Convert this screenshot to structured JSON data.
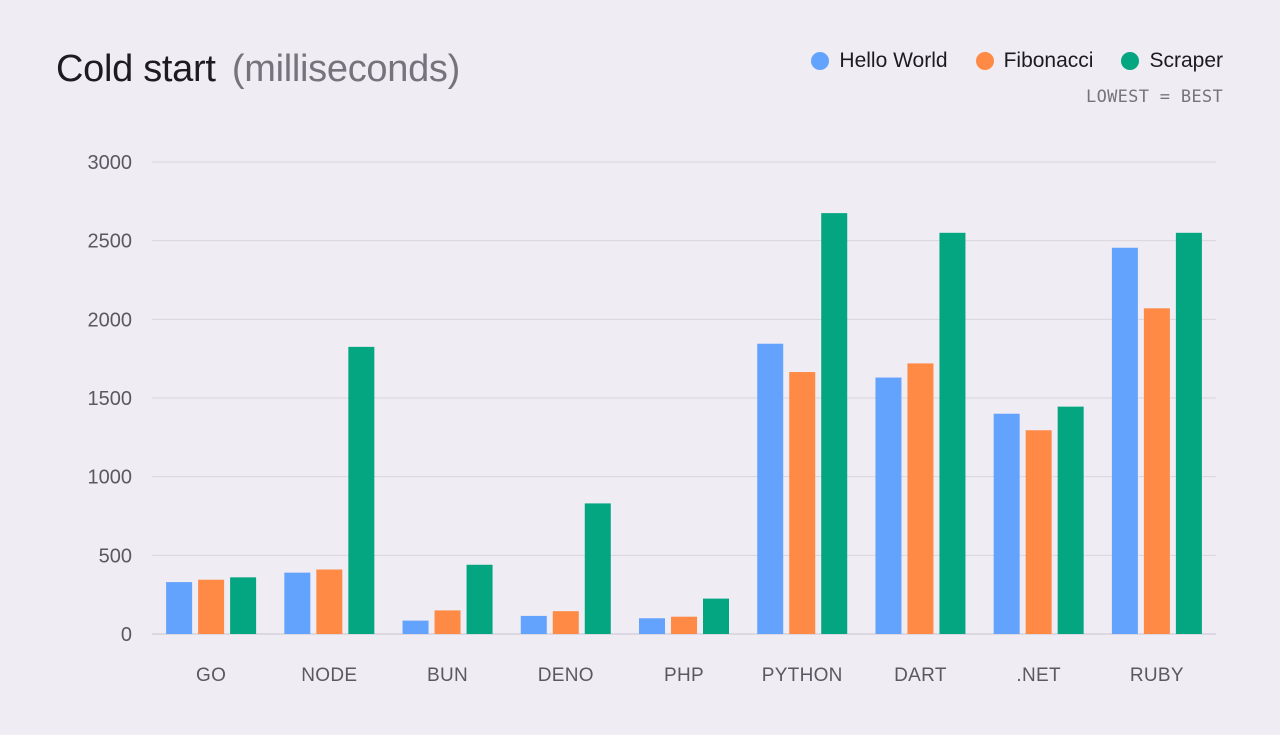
{
  "title": "Cold start",
  "title_unit": "(milliseconds)",
  "note": "LOWEST = BEST",
  "legend": [
    {
      "label": "Hello World",
      "color": "#64a3fd"
    },
    {
      "label": "Fibonacci",
      "color": "#fe8a46"
    },
    {
      "label": "Scraper",
      "color": "#04a581"
    }
  ],
  "chart_data": {
    "type": "bar",
    "title": "Cold start (milliseconds)",
    "xlabel": "",
    "ylabel": "",
    "ylim": [
      0,
      3000
    ],
    "yticks": [
      0,
      500,
      1000,
      1500,
      2000,
      2500,
      3000
    ],
    "grid": true,
    "legend_position": "top-right",
    "categories": [
      "GO",
      "NODE",
      "BUN",
      "DENO",
      "PHP",
      "PYTHON",
      "DART",
      ".NET",
      "RUBY"
    ],
    "series": [
      {
        "name": "Hello World",
        "color": "#64a3fd",
        "values": [
          330,
          390,
          85,
          115,
          100,
          1845,
          1630,
          1400,
          2455
        ]
      },
      {
        "name": "Fibonacci",
        "color": "#fe8a46",
        "values": [
          345,
          410,
          150,
          145,
          110,
          1665,
          1720,
          1295,
          2070
        ]
      },
      {
        "name": "Scraper",
        "color": "#04a581",
        "values": [
          360,
          1825,
          440,
          830,
          225,
          2675,
          2550,
          1445,
          2550
        ]
      }
    ]
  }
}
